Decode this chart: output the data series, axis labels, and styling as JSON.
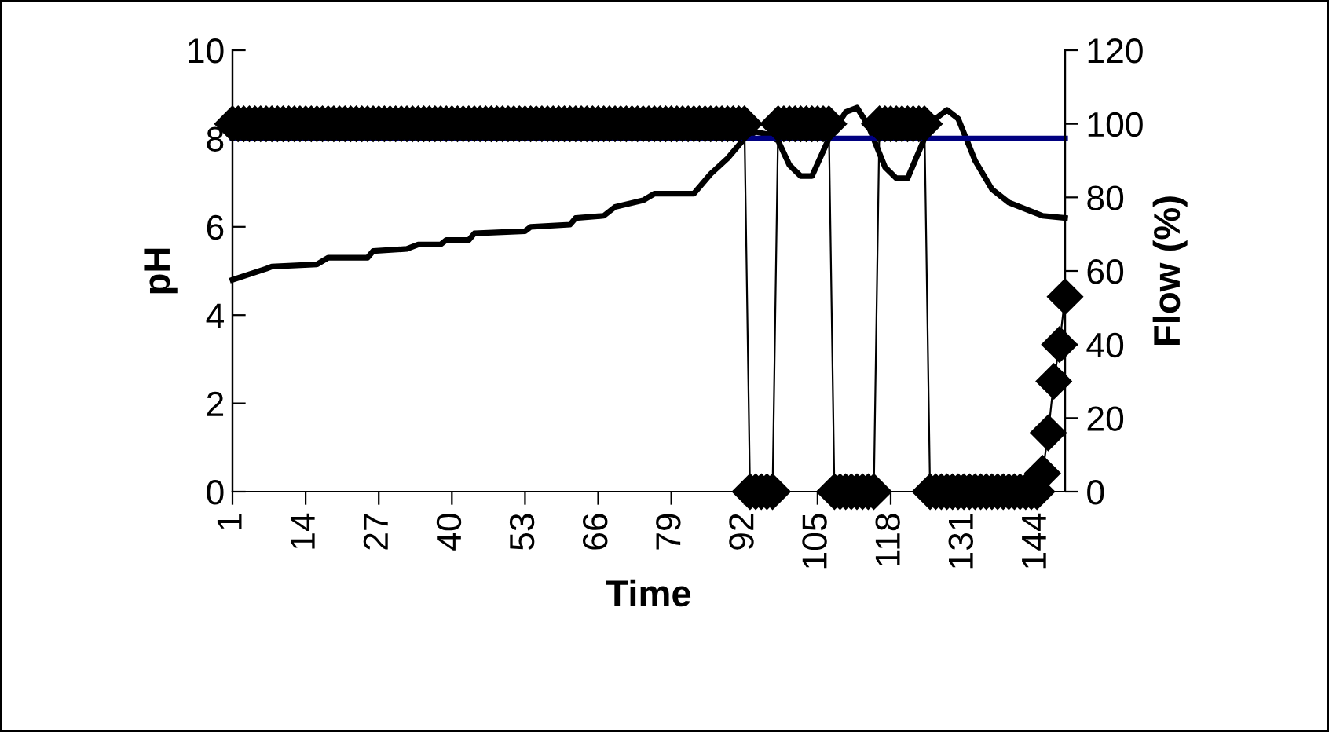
{
  "chart_data": {
    "type": "line",
    "xlabel": "Time",
    "ylabel": "pH",
    "y2label": "Flow (%)",
    "x": [
      1,
      2,
      3,
      4,
      5,
      6,
      7,
      8,
      9,
      10,
      11,
      12,
      13,
      14,
      15,
      16,
      17,
      18,
      19,
      20,
      21,
      22,
      23,
      24,
      25,
      26,
      27,
      28,
      29,
      30,
      31,
      32,
      33,
      34,
      35,
      36,
      37,
      38,
      39,
      40,
      41,
      42,
      43,
      44,
      45,
      46,
      47,
      48,
      49,
      50,
      51,
      52,
      53,
      54,
      55,
      56,
      57,
      58,
      59,
      60,
      61,
      62,
      63,
      64,
      65,
      66,
      67,
      68,
      69,
      70,
      71,
      72,
      73,
      74,
      75,
      76,
      77,
      78,
      79,
      80,
      81,
      82,
      83,
      84,
      85,
      86,
      87,
      88,
      89,
      90,
      91,
      92,
      93,
      94,
      95,
      96,
      97,
      98,
      99,
      100,
      101,
      102,
      103,
      104,
      105,
      106,
      107,
      108,
      109,
      110,
      111,
      112,
      113,
      114,
      115,
      116,
      117,
      118,
      119,
      120,
      121,
      122,
      123,
      124,
      125,
      126,
      127,
      128,
      129,
      130,
      131,
      132,
      133,
      134,
      135,
      136,
      137,
      138,
      139,
      140,
      141,
      142,
      143,
      144,
      145,
      146,
      147,
      148,
      149
    ],
    "xlim": [
      1,
      149
    ],
    "xticks": [
      1,
      14,
      27,
      40,
      53,
      66,
      79,
      92,
      105,
      118,
      131,
      144
    ],
    "ylim": [
      0,
      10
    ],
    "yticks": [
      0,
      2,
      4,
      6,
      8,
      10
    ],
    "y2lim": [
      0,
      120
    ],
    "y2ticks": [
      0,
      20,
      40,
      60,
      80,
      100,
      120
    ],
    "grid": false,
    "legend": false,
    "series": [
      {
        "color": "#000000",
        "marker": "none",
        "x": [
          1,
          7,
          8,
          16,
          18,
          25,
          26,
          32,
          34,
          38,
          39,
          43,
          44,
          53,
          54,
          61,
          62,
          67,
          69,
          74,
          76,
          83,
          86,
          89,
          92,
          94,
          96,
          98,
          100,
          102,
          104,
          107,
          110,
          112,
          114,
          117,
          119,
          121,
          124,
          126,
          128,
          130,
          133,
          136,
          139,
          143,
          145,
          149
        ],
        "values": [
          4.8,
          5.05,
          5.1,
          5.15,
          5.3,
          5.3,
          5.45,
          5.5,
          5.6,
          5.6,
          5.7,
          5.7,
          5.85,
          5.9,
          6.0,
          6.05,
          6.2,
          6.25,
          6.45,
          6.6,
          6.75,
          6.75,
          7.2,
          7.55,
          8.0,
          8.15,
          8.1,
          7.95,
          7.4,
          7.15,
          7.15,
          8.0,
          8.6,
          8.7,
          8.3,
          7.35,
          7.1,
          7.1,
          8.0,
          8.45,
          8.65,
          8.45,
          7.5,
          6.85,
          6.55,
          6.35,
          6.25,
          6.2
        ]
      },
      {
        "color": "#000080",
        "marker": "none",
        "x": [
          1,
          149
        ],
        "values": [
          8,
          8
        ]
      },
      {
        "color": "#000000",
        "marker": "diamond",
        "axis": "y2",
        "values": [
          100,
          100,
          100,
          100,
          100,
          100,
          100,
          100,
          100,
          100,
          100,
          100,
          100,
          100,
          100,
          100,
          100,
          100,
          100,
          100,
          100,
          100,
          100,
          100,
          100,
          100,
          100,
          100,
          100,
          100,
          100,
          100,
          100,
          100,
          100,
          100,
          100,
          100,
          100,
          100,
          100,
          100,
          100,
          100,
          100,
          100,
          100,
          100,
          100,
          100,
          100,
          100,
          100,
          100,
          100,
          100,
          100,
          100,
          100,
          100,
          100,
          100,
          100,
          100,
          100,
          100,
          100,
          100,
          100,
          100,
          100,
          100,
          100,
          100,
          100,
          100,
          100,
          100,
          100,
          100,
          100,
          100,
          100,
          100,
          100,
          100,
          100,
          100,
          100,
          100,
          100,
          100,
          0,
          0,
          0,
          0,
          0,
          100,
          100,
          100,
          100,
          100,
          100,
          100,
          100,
          100,
          100,
          0,
          0,
          0,
          0,
          0,
          0,
          0,
          0,
          100,
          100,
          100,
          100,
          100,
          100,
          100,
          100,
          100,
          0,
          0,
          0,
          0,
          0,
          0,
          0,
          0,
          0,
          0,
          0,
          0,
          0,
          0,
          0,
          0,
          0,
          0,
          0,
          0,
          5,
          16,
          30,
          40,
          53
        ]
      }
    ]
  }
}
